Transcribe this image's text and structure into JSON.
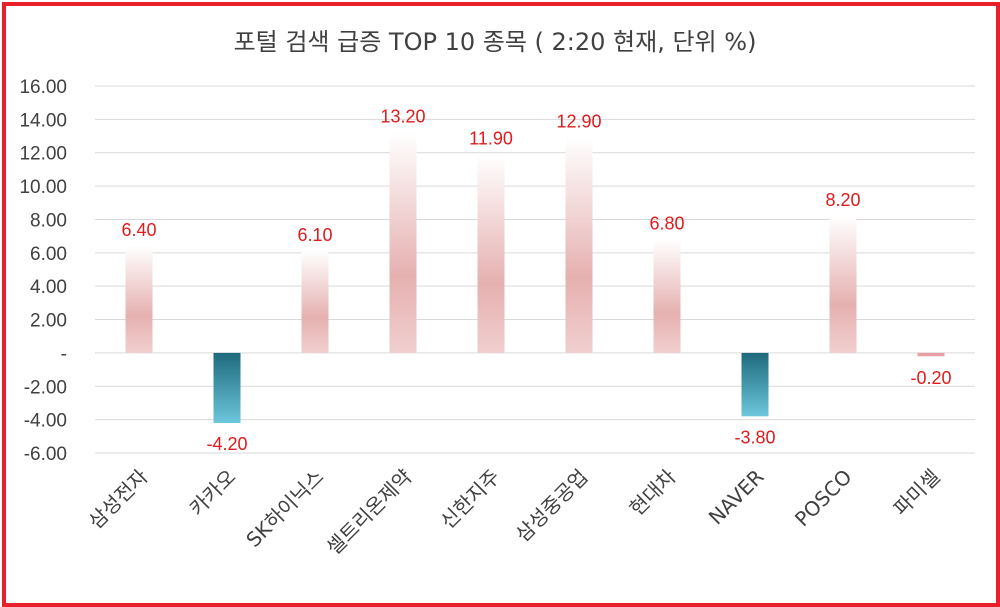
{
  "chart_data": {
    "type": "bar",
    "title": "포털 검색 급증 TOP 10 종목 ( 2:20 현재, 단위 %)",
    "categories": [
      "삼성전자",
      "카카오",
      "SK하이닉스",
      "셀트리온제약",
      "신한지주",
      "삼성중공업",
      "현대차",
      "NAVER",
      "POSCO",
      "파미셀"
    ],
    "values": [
      6.4,
      -4.2,
      6.1,
      13.2,
      11.9,
      12.9,
      6.8,
      -3.8,
      8.2,
      -0.2
    ],
    "data_labels": [
      "6.40",
      "-4.20",
      "6.10",
      "13.20",
      "11.90",
      "12.90",
      "6.80",
      "-3.80",
      "8.20",
      "-0.20"
    ],
    "ylim": [
      -6,
      16
    ],
    "yticks": [
      16,
      14,
      12,
      10,
      8,
      6,
      4,
      2,
      0,
      -2,
      -4,
      -6
    ],
    "ytick_labels": [
      "16.00",
      "14.00",
      "12.00",
      "10.00",
      "8.00",
      "6.00",
      "4.00",
      "2.00",
      "-",
      "-2.00",
      "-4.00",
      "-6.00"
    ],
    "grid": true,
    "legend": "none",
    "colors": {
      "positive_bar_top": "#ffffff",
      "positive_bar_mid": "#e6b0b0",
      "negative_bar_top": "#1e6a7c",
      "negative_bar_bottom": "#6cc6dc",
      "small_negative_bar": "#e8a0a6",
      "data_label": "#e01b1b",
      "border": "#e8202a"
    }
  }
}
